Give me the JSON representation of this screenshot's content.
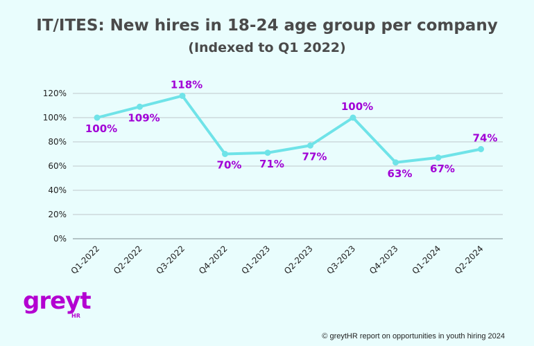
{
  "chart_data": {
    "type": "line",
    "title": "IT/ITES: New hires in 18-24 age group per company",
    "subtitle": "(Indexed to Q1 2022)",
    "categories": [
      "Q1-2022",
      "Q2-2022",
      "Q3-2022",
      "Q4-2022",
      "Q1-2023",
      "Q2-2023",
      "Q3-2023",
      "Q4-2023",
      "Q1-2024",
      "Q2-2024"
    ],
    "values": [
      100,
      109,
      118,
      70,
      71,
      77,
      100,
      63,
      67,
      74
    ],
    "data_labels": [
      "100%",
      "109%",
      "118%",
      "70%",
      "71%",
      "77%",
      "100%",
      "63%",
      "67%",
      "74%"
    ],
    "y_ticks": [
      "0%",
      "20%",
      "40%",
      "60%",
      "80%",
      "100%",
      "120%"
    ],
    "y_tick_values": [
      0,
      20,
      40,
      60,
      80,
      100,
      120
    ],
    "ylim": [
      0,
      120
    ],
    "grid": true,
    "xlabel": "",
    "ylabel": ""
  },
  "colors": {
    "line": "#6fe3e8",
    "labels": "#a100d6",
    "grid": "#bfc8cc",
    "brand": "#b300d1"
  },
  "brand": {
    "logo_text": "greyt",
    "logo_sub": "HR"
  },
  "footer": {
    "copyright": "© greytHR report on opportunities in youth hiring 2024"
  }
}
